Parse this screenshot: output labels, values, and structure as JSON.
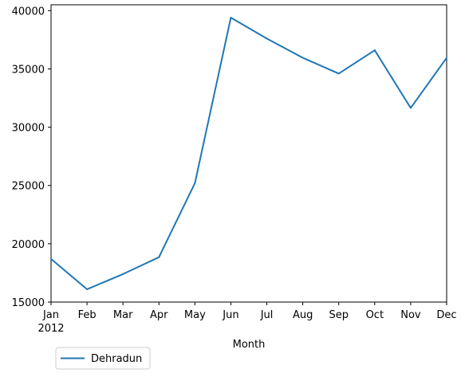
{
  "chart_data": {
    "type": "line",
    "x_categories": [
      "Jan",
      "Feb",
      "Mar",
      "Apr",
      "May",
      "Jun",
      "Jul",
      "Aug",
      "Sep",
      "Oct",
      "Nov",
      "Dec"
    ],
    "x_year_label": "2012",
    "series": [
      {
        "name": "Dehradun",
        "color": "#1f77b4",
        "values": [
          18700,
          16100,
          17400,
          18850,
          25200,
          39400,
          37600,
          35950,
          34600,
          36600,
          31650,
          35950
        ]
      }
    ],
    "xlabel": "Month",
    "ylabel": "",
    "ylim": [
      15000,
      40500
    ],
    "yticks": [
      15000,
      20000,
      25000,
      30000,
      35000,
      40000
    ],
    "grid": false,
    "legend_position": "below-left"
  }
}
